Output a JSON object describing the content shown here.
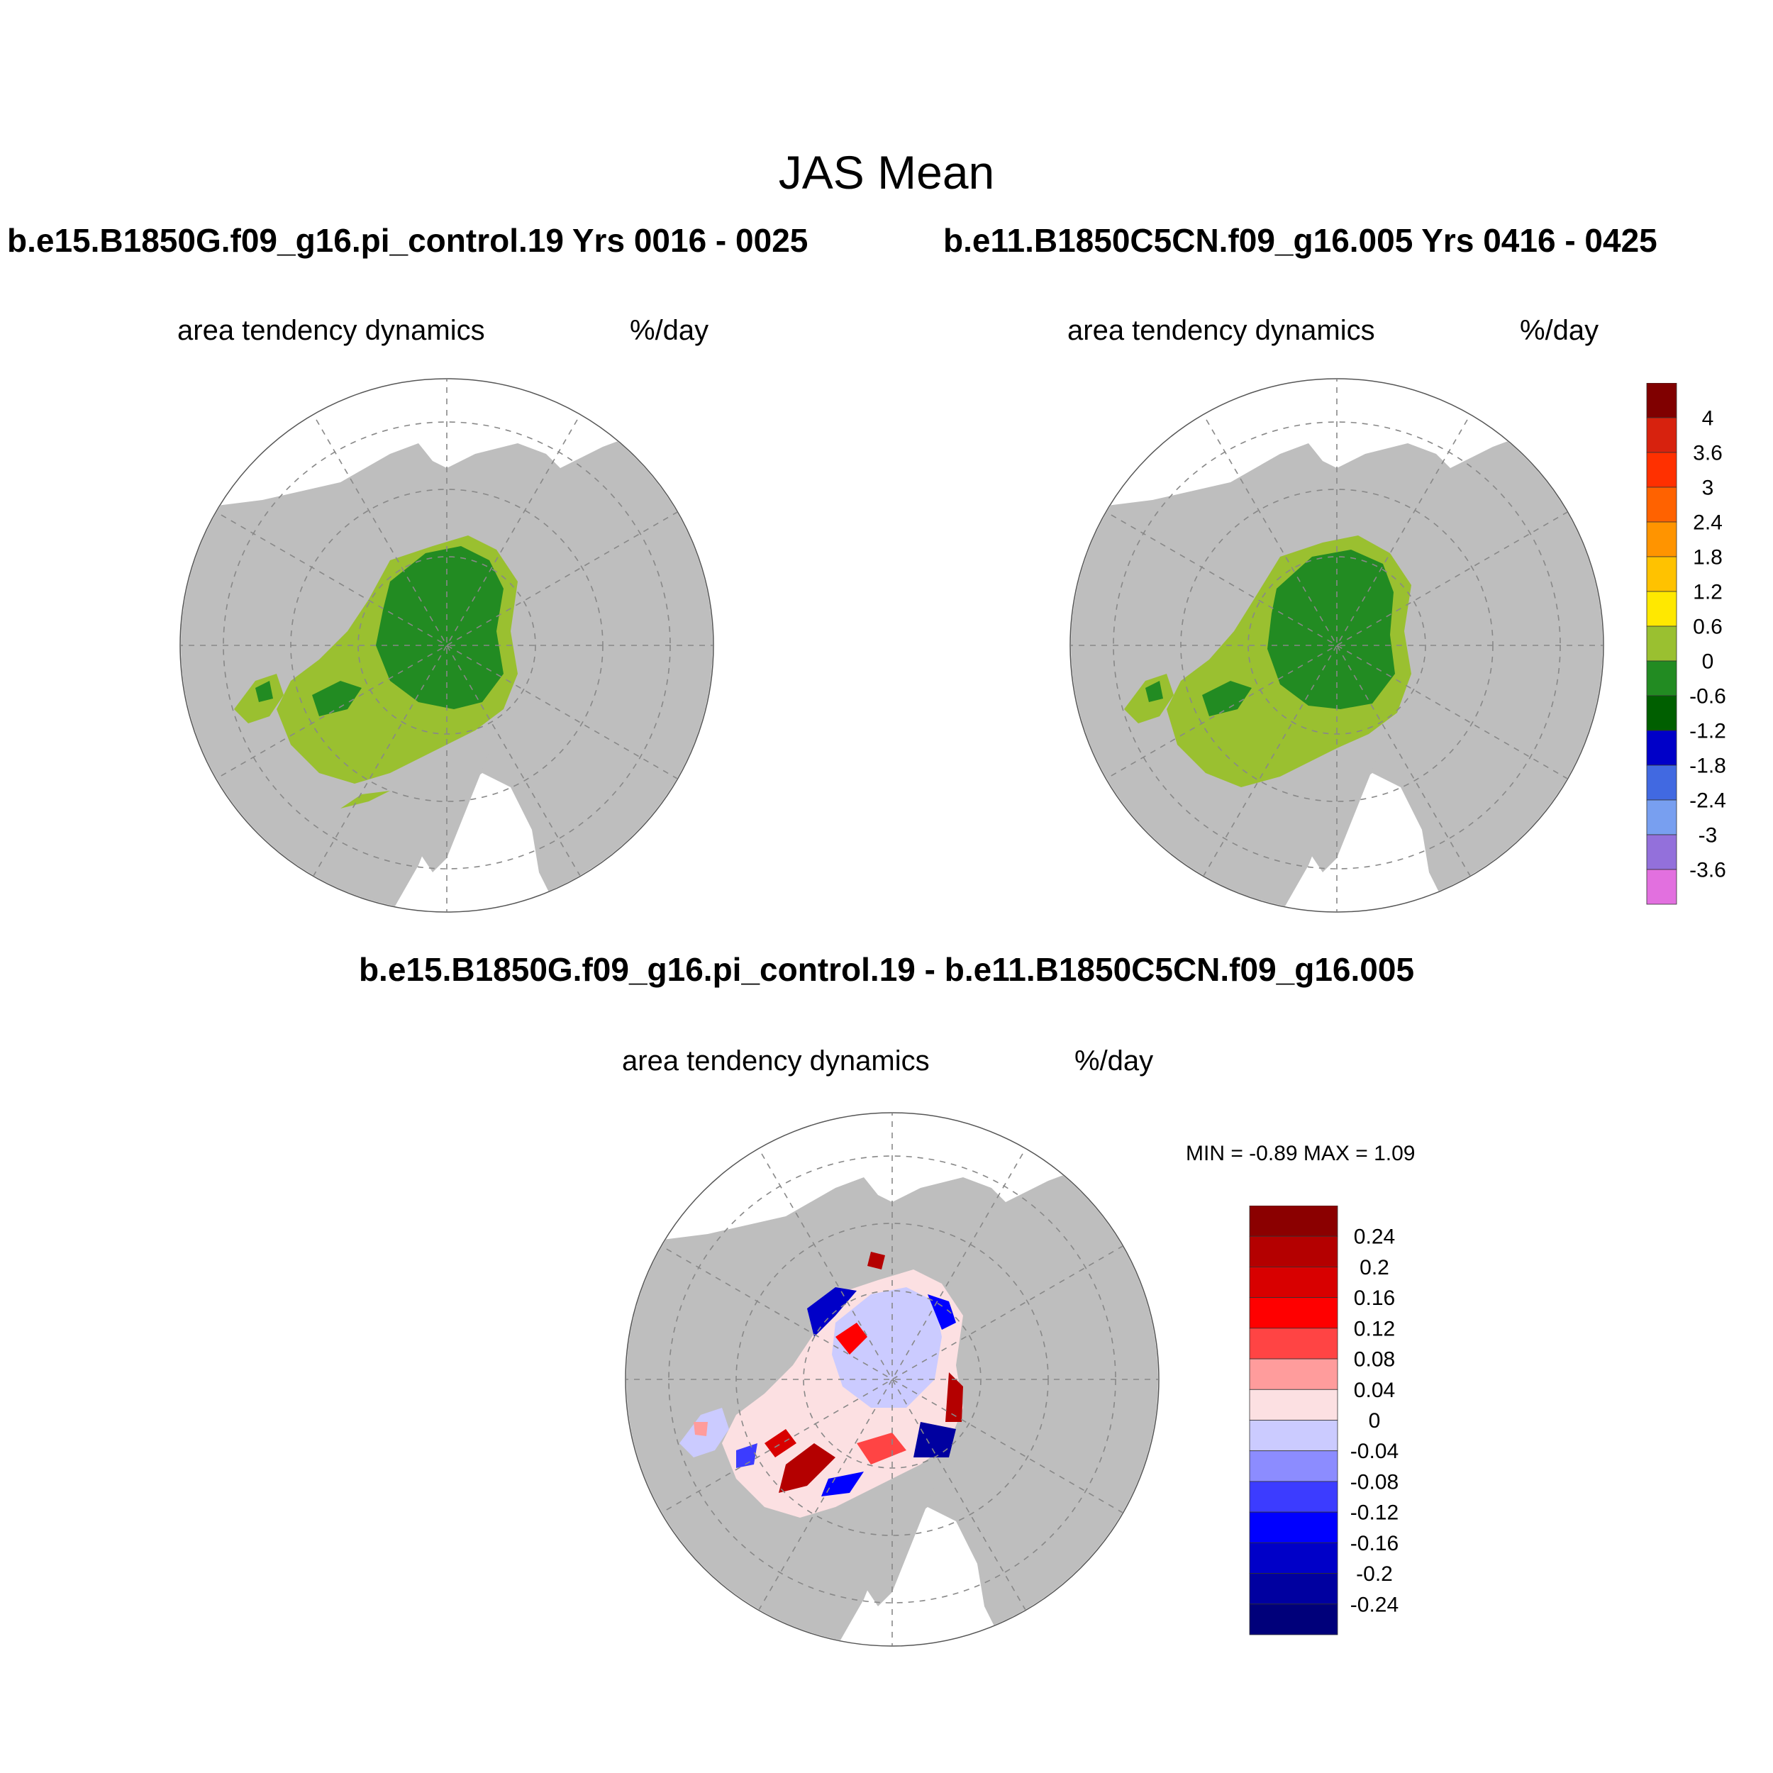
{
  "main_title": "JAS Mean",
  "panels": [
    {
      "id": "p1",
      "case_title": "b.e15.B1850G.f09_g16.pi_control.19  Yrs 0016 - 0025",
      "left_label": "area tendency dynamics",
      "right_label": "%/day"
    },
    {
      "id": "p2",
      "case_title": "b.e11.B1850C5CN.f09_g16.005  Yrs 0416 - 0425",
      "left_label": "area tendency dynamics",
      "right_label": "%/day"
    },
    {
      "id": "diff",
      "case_title": "b.e15.B1850G.f09_g16.pi_control.19 - b.e11.B1850C5CN.f09_g16.005",
      "left_label": "area tendency dynamics",
      "right_label": "%/day"
    }
  ],
  "diff_stats": "MIN =  -0.89 MAX =   1.09",
  "colorbars": {
    "main": {
      "labels": [
        "4",
        "3.6",
        "3",
        "2.4",
        "1.8",
        "1.2",
        "0.6",
        "0",
        "-0.6",
        "-1.2",
        "-1.8",
        "-2.4",
        "-3",
        "-3.6"
      ],
      "colors": [
        "#800000",
        "#d7220e",
        "#ff3000",
        "#ff6200",
        "#ff9400",
        "#ffc200",
        "#ffe800",
        "#9ac030",
        "#228b22",
        "#005f00",
        "#0000c8",
        "#4169e1",
        "#789ff0",
        "#9370db",
        "#e270df"
      ]
    },
    "diff": {
      "labels": [
        "0.24",
        "0.2",
        "0.16",
        "0.12",
        "0.08",
        "0.04",
        "0",
        "-0.04",
        "-0.08",
        "-0.12",
        "-0.16",
        "-0.2",
        "-0.24"
      ],
      "colors": [
        "#8b0000",
        "#b40000",
        "#d80000",
        "#ff0000",
        "#ff4444",
        "#ff9c9c",
        "#fce0e2",
        "#cbcbff",
        "#8c8cff",
        "#3c3cff",
        "#0000ff",
        "#0000c8",
        "#0000a0",
        "#00007a"
      ]
    }
  }
}
